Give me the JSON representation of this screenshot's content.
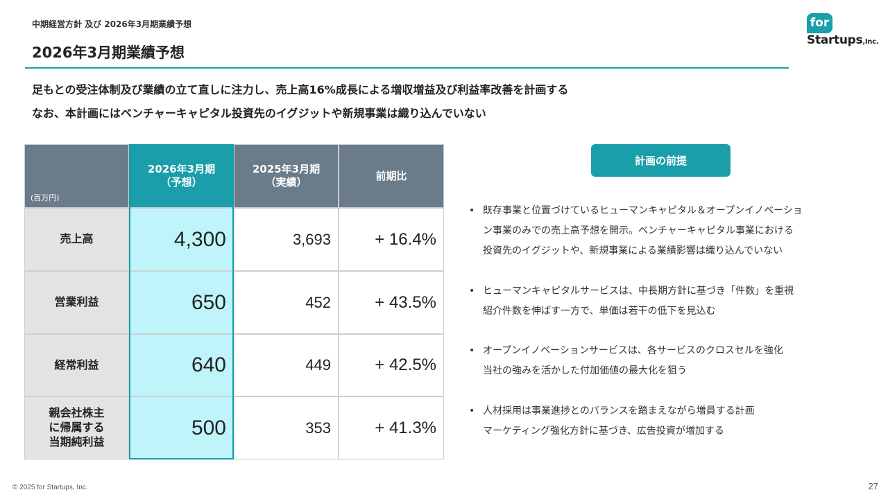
{
  "header": {
    "breadcrumb": "中期経営方針 及び 2026年3月期業績予想",
    "title": "2026年3月期業績予想",
    "accent_color": "#1a9eaa"
  },
  "logo": {
    "top": "for",
    "bottom": "Startups",
    "suffix": ",Inc."
  },
  "lead": [
    "足もとの受注体制及び業績の立て直しに注力し、売上高16%成長による増収増益及び利益率改善を計画する",
    "なお、本計画にはベンチャーキャピタル投資先のイグジットや新規事業は織り込んでいない"
  ],
  "table": {
    "unit": "(百万円)",
    "columns": [
      {
        "line1": "2026年3月期",
        "line2": "（予想）"
      },
      {
        "line1": "2025年3月期",
        "line2": "（実績）"
      },
      {
        "line1": "前期比",
        "line2": ""
      }
    ],
    "rows": [
      {
        "label": [
          "売上高"
        ],
        "forecast": "4,300",
        "actual": "3,693",
        "ratio": "+ 16.4%"
      },
      {
        "label": [
          "営業利益"
        ],
        "forecast": "650",
        "actual": "452",
        "ratio": "+ 43.5%"
      },
      {
        "label": [
          "経常利益"
        ],
        "forecast": "640",
        "actual": "449",
        "ratio": "+ 42.5%"
      },
      {
        "label": [
          "親会社株主",
          "に帰属する",
          "当期純利益"
        ],
        "forecast": "500",
        "actual": "353",
        "ratio": "+ 41.3%"
      }
    ]
  },
  "premise": {
    "title": "計画の前提",
    "bullet_symbol": "•",
    "bullets": [
      [
        "既存事業と位置づけているヒューマンキャピタル＆オープンイノベーショ",
        "ン事業のみでの売上高予想を開示。ベンチャーキャピタル事業における",
        "投資先のイグジットや、新規事業による業績影響は織り込んでいない"
      ],
      [
        "ヒューマンキャピタルサービスは、中長期方針に基づき「件数」を重視",
        "紹介件数を伸ばす一方で、単価は若干の低下を見込む"
      ],
      [
        "オープンイノベーションサービスは、各サービスのクロスセルを強化",
        "当社の強みを活かした付加価値の最大化を狙う"
      ],
      [
        "人材採用は事業進捗とのバランスを踏まえながら増員する計画",
        "マーケティング強化方針に基づき、広告投資が増加する"
      ]
    ]
  },
  "footer": {
    "copyright": "© 2025 for Startups, Inc.",
    "page_number": "27"
  }
}
